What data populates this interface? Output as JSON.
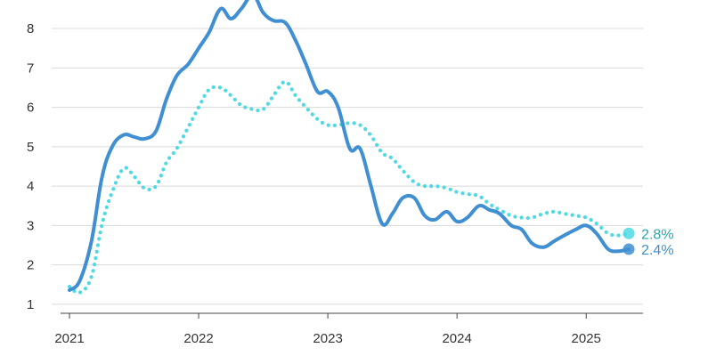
{
  "chart_data": {
    "type": "line",
    "title": "",
    "xlabel": "",
    "ylabel": "",
    "xlim": [
      2021.0,
      2025.45
    ],
    "ylim": [
      0.75,
      8.95
    ],
    "y_ticks": [
      "1",
      "2",
      "3",
      "4",
      "5",
      "6",
      "7",
      "8"
    ],
    "x_ticks": [
      "2021",
      "2022",
      "2023",
      "2024",
      "2025"
    ],
    "grid": "horizontal",
    "legend": "none",
    "series": [
      {
        "style": "solid",
        "color": "#3f8fd2",
        "end_label": "2.4%",
        "points": [
          [
            2021.0,
            1.36
          ],
          [
            2021.08,
            1.6
          ],
          [
            2021.17,
            2.6
          ],
          [
            2021.25,
            4.2
          ],
          [
            2021.33,
            5.0
          ],
          [
            2021.42,
            5.3
          ],
          [
            2021.5,
            5.25
          ],
          [
            2021.58,
            5.2
          ],
          [
            2021.67,
            5.4
          ],
          [
            2021.75,
            6.2
          ],
          [
            2021.83,
            6.8
          ],
          [
            2021.92,
            7.1
          ],
          [
            2022.0,
            7.5
          ],
          [
            2022.08,
            7.9
          ],
          [
            2022.17,
            8.5
          ],
          [
            2022.25,
            8.25
          ],
          [
            2022.33,
            8.5
          ],
          [
            2022.42,
            8.85
          ],
          [
            2022.5,
            8.4
          ],
          [
            2022.58,
            8.2
          ],
          [
            2022.67,
            8.15
          ],
          [
            2022.75,
            7.7
          ],
          [
            2022.83,
            7.1
          ],
          [
            2022.92,
            6.4
          ],
          [
            2023.0,
            6.4
          ],
          [
            2023.08,
            6.0
          ],
          [
            2023.17,
            4.95
          ],
          [
            2023.25,
            4.95
          ],
          [
            2023.33,
            4.05
          ],
          [
            2023.42,
            3.05
          ],
          [
            2023.5,
            3.3
          ],
          [
            2023.58,
            3.7
          ],
          [
            2023.67,
            3.7
          ],
          [
            2023.75,
            3.25
          ],
          [
            2023.83,
            3.15
          ],
          [
            2023.92,
            3.35
          ],
          [
            2024.0,
            3.1
          ],
          [
            2024.08,
            3.2
          ],
          [
            2024.17,
            3.5
          ],
          [
            2024.25,
            3.4
          ],
          [
            2024.33,
            3.3
          ],
          [
            2024.42,
            3.0
          ],
          [
            2024.5,
            2.9
          ],
          [
            2024.58,
            2.55
          ],
          [
            2024.67,
            2.45
          ],
          [
            2024.75,
            2.6
          ],
          [
            2024.83,
            2.75
          ],
          [
            2024.92,
            2.9
          ],
          [
            2025.0,
            3.0
          ],
          [
            2025.08,
            2.8
          ],
          [
            2025.17,
            2.4
          ],
          [
            2025.25,
            2.35
          ],
          [
            2025.33,
            2.4
          ]
        ]
      },
      {
        "style": "dotted",
        "color": "#4fd9e3",
        "end_label": "2.8%",
        "points": [
          [
            2021.0,
            1.45
          ],
          [
            2021.08,
            1.3
          ],
          [
            2021.17,
            1.7
          ],
          [
            2021.25,
            3.0
          ],
          [
            2021.33,
            3.85
          ],
          [
            2021.42,
            4.45
          ],
          [
            2021.5,
            4.25
          ],
          [
            2021.58,
            3.95
          ],
          [
            2021.67,
            4.0
          ],
          [
            2021.75,
            4.6
          ],
          [
            2021.83,
            4.95
          ],
          [
            2021.92,
            5.5
          ],
          [
            2022.0,
            6.0
          ],
          [
            2022.08,
            6.45
          ],
          [
            2022.17,
            6.5
          ],
          [
            2022.25,
            6.3
          ],
          [
            2022.33,
            6.05
          ],
          [
            2022.42,
            5.95
          ],
          [
            2022.5,
            5.95
          ],
          [
            2022.58,
            6.3
          ],
          [
            2022.67,
            6.65
          ],
          [
            2022.75,
            6.3
          ],
          [
            2022.83,
            6.0
          ],
          [
            2022.92,
            5.7
          ],
          [
            2023.0,
            5.55
          ],
          [
            2023.08,
            5.55
          ],
          [
            2023.17,
            5.6
          ],
          [
            2023.25,
            5.55
          ],
          [
            2023.33,
            5.3
          ],
          [
            2023.42,
            4.85
          ],
          [
            2023.5,
            4.7
          ],
          [
            2023.58,
            4.4
          ],
          [
            2023.67,
            4.1
          ],
          [
            2023.75,
            4.0
          ],
          [
            2023.83,
            4.0
          ],
          [
            2023.92,
            3.95
          ],
          [
            2024.0,
            3.85
          ],
          [
            2024.08,
            3.8
          ],
          [
            2024.17,
            3.75
          ],
          [
            2024.25,
            3.55
          ],
          [
            2024.33,
            3.4
          ],
          [
            2024.42,
            3.25
          ],
          [
            2024.5,
            3.2
          ],
          [
            2024.58,
            3.2
          ],
          [
            2024.67,
            3.3
          ],
          [
            2024.75,
            3.35
          ],
          [
            2024.83,
            3.3
          ],
          [
            2024.92,
            3.25
          ],
          [
            2025.0,
            3.2
          ],
          [
            2025.08,
            3.05
          ],
          [
            2025.17,
            2.8
          ],
          [
            2025.25,
            2.75
          ],
          [
            2025.33,
            2.8
          ]
        ]
      }
    ]
  }
}
